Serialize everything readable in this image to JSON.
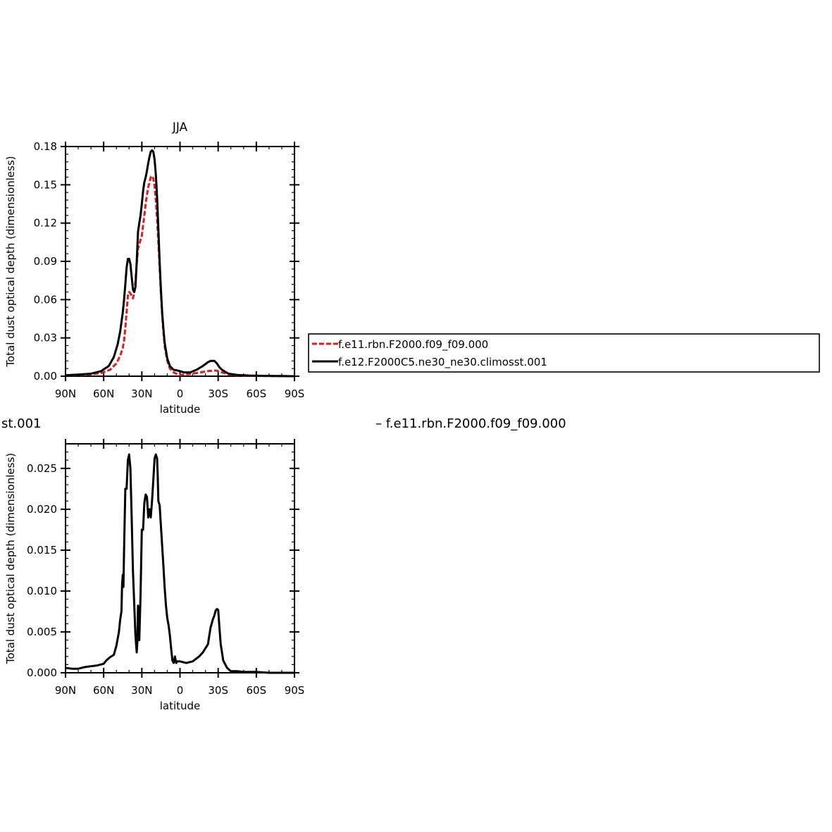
{
  "top_title": "JJA",
  "bottom_left_fragment": "st.001",
  "bottom_right_text": "– f.e11.rbn.F2000.f09_f09.000",
  "legend": {
    "items": [
      {
        "label": "f.e11.rbn.F2000.f09_f09.000",
        "color": "#e41a1c",
        "dash": true
      },
      {
        "label": "f.e12.F2000C5.ne30_ne30.climosst.001",
        "color": "#000000",
        "dash": false
      }
    ]
  },
  "chart_data": [
    {
      "type": "line",
      "title": "JJA",
      "xlabel": "latitude",
      "ylabel": "Total dust optical depth (dimensionless)",
      "xlim": [
        90,
        -90
      ],
      "ylim": [
        0,
        0.18
      ],
      "xticks": [
        90,
        60,
        30,
        0,
        -30,
        -60,
        -90
      ],
      "xtick_labels": [
        "90N",
        "60N",
        "30N",
        "0",
        "30S",
        "60S",
        "90S"
      ],
      "yticks": [
        0,
        0.03,
        0.06,
        0.09,
        0.12,
        0.15,
        0.18
      ],
      "ytick_labels": [
        "0.00",
        "0.03",
        "0.06",
        "0.09",
        "0.12",
        "0.15",
        "0.18"
      ],
      "series": [
        {
          "name": "f.e11.rbn.F2000.f09_f09.000",
          "color": "#e41a1c",
          "dash": true,
          "x": [
            90,
            80,
            70,
            62,
            55,
            50,
            47,
            45,
            44,
            43,
            42,
            41,
            40,
            39,
            38,
            37,
            36,
            35,
            34,
            33,
            32,
            31,
            30,
            29,
            28,
            27,
            26,
            25,
            24,
            23,
            22,
            21,
            20,
            19,
            18,
            17,
            16,
            15,
            14,
            13,
            12,
            10,
            8,
            5,
            2,
            0,
            -3,
            -8,
            -13,
            -18,
            -22,
            -25,
            -28,
            -30,
            -33,
            -38,
            -45,
            -55,
            -70,
            -90
          ],
          "y": [
            0.0008,
            0.001,
            0.0015,
            0.0025,
            0.005,
            0.01,
            0.016,
            0.022,
            0.028,
            0.038,
            0.05,
            0.063,
            0.066,
            0.065,
            0.063,
            0.061,
            0.065,
            0.075,
            0.088,
            0.1,
            0.103,
            0.107,
            0.11,
            0.118,
            0.126,
            0.135,
            0.142,
            0.148,
            0.152,
            0.156,
            0.157,
            0.155,
            0.149,
            0.138,
            0.123,
            0.105,
            0.085,
            0.065,
            0.048,
            0.034,
            0.023,
            0.012,
            0.006,
            0.003,
            0.0015,
            0.001,
            0.0012,
            0.0018,
            0.0025,
            0.0033,
            0.004,
            0.0042,
            0.0045,
            0.004,
            0.003,
            0.0015,
            0.0006,
            0.0003,
            0.0001,
            0.0
          ]
        },
        {
          "name": "f.e12.F2000C5.ne30_ne30.climosst.001",
          "color": "#000000",
          "dash": false,
          "x": [
            90,
            80,
            70,
            62,
            56,
            52,
            49,
            47,
            45,
            44,
            43,
            42,
            41,
            40,
            39,
            38,
            37,
            36,
            35,
            34,
            33,
            32,
            31,
            30,
            29,
            28,
            27,
            26,
            25,
            24,
            23,
            22,
            21,
            20,
            19,
            18,
            17,
            16,
            15,
            14,
            13,
            12,
            10,
            8,
            5,
            2,
            0,
            -3,
            -8,
            -13,
            -18,
            -22,
            -24,
            -26,
            -27,
            -29,
            -31,
            -33,
            -38,
            -45,
            -55,
            -70,
            -90
          ],
          "y": [
            0.0008,
            0.0012,
            0.002,
            0.004,
            0.008,
            0.015,
            0.025,
            0.035,
            0.05,
            0.06,
            0.072,
            0.085,
            0.092,
            0.092,
            0.088,
            0.078,
            0.068,
            0.066,
            0.07,
            0.09,
            0.113,
            0.12,
            0.126,
            0.135,
            0.145,
            0.152,
            0.156,
            0.161,
            0.167,
            0.172,
            0.176,
            0.177,
            0.176,
            0.17,
            0.158,
            0.14,
            0.115,
            0.09,
            0.068,
            0.05,
            0.037,
            0.026,
            0.014,
            0.008,
            0.005,
            0.0045,
            0.004,
            0.003,
            0.003,
            0.005,
            0.008,
            0.011,
            0.012,
            0.012,
            0.012,
            0.01,
            0.007,
            0.005,
            0.002,
            0.001,
            0.0005,
            0.0002,
            0.0
          ]
        }
      ]
    },
    {
      "type": "line",
      "title": "",
      "xlabel": "latitude",
      "ylabel": "Total dust optical depth (dimensionless)",
      "xlim": [
        90,
        -90
      ],
      "ylim": [
        0,
        0.028
      ],
      "xticks": [
        90,
        60,
        30,
        0,
        -30,
        -60,
        -90
      ],
      "xtick_labels": [
        "90N",
        "60N",
        "30N",
        "0",
        "30S",
        "60S",
        "90S"
      ],
      "yticks": [
        0,
        0.005,
        0.01,
        0.015,
        0.02,
        0.025
      ],
      "ytick_labels": [
        "0.000",
        "0.005",
        "0.010",
        "0.015",
        "0.020",
        "0.025"
      ],
      "series": [
        {
          "color": "#000000",
          "dash": false,
          "x": [
            90,
            85,
            80,
            75,
            70,
            65,
            60,
            58,
            55,
            52,
            50,
            48,
            47,
            46,
            45.5,
            45,
            44.5,
            44,
            43,
            42,
            41,
            40,
            39,
            38,
            37,
            36,
            35,
            34,
            33.5,
            33,
            32.5,
            32,
            31,
            30,
            29,
            28,
            27,
            26,
            25,
            24,
            23,
            22,
            21,
            20,
            19,
            18,
            17.5,
            17,
            16,
            15,
            14,
            13,
            12,
            11,
            10,
            9,
            8,
            7,
            6,
            5,
            4,
            3,
            2,
            1,
            0,
            -5,
            -10,
            -15,
            -18,
            -22,
            -24,
            -26,
            -27,
            -28,
            -29,
            -30,
            -31,
            -32,
            -34,
            -37,
            -40,
            -45,
            -50,
            -60,
            -70,
            -90
          ],
          "y": [
            0.0006,
            0.0005,
            0.0005,
            0.0007,
            0.0008,
            0.0009,
            0.0011,
            0.0015,
            0.0019,
            0.0022,
            0.0033,
            0.005,
            0.0065,
            0.0075,
            0.0108,
            0.012,
            0.0105,
            0.015,
            0.0225,
            0.0225,
            0.026,
            0.0267,
            0.025,
            0.019,
            0.0125,
            0.0085,
            0.0045,
            0.0025,
            0.0038,
            0.0082,
            0.0075,
            0.004,
            0.0095,
            0.0175,
            0.0175,
            0.0208,
            0.0218,
            0.0215,
            0.019,
            0.02,
            0.019,
            0.021,
            0.0235,
            0.0262,
            0.0267,
            0.0262,
            0.024,
            0.021,
            0.0205,
            0.018,
            0.0155,
            0.013,
            0.0103,
            0.0082,
            0.0067,
            0.0058,
            0.0046,
            0.003,
            0.0015,
            0.0012,
            0.002,
            0.0012,
            0.0014,
            0.0014,
            0.0014,
            0.0012,
            0.0014,
            0.002,
            0.0025,
            0.0035,
            0.0055,
            0.0066,
            0.007,
            0.0076,
            0.0078,
            0.0077,
            0.0055,
            0.0035,
            0.0015,
            0.0006,
            0.0002,
            0.0002,
            0.0001,
            0.0001,
            0.0,
            0.0
          ]
        }
      ]
    }
  ]
}
